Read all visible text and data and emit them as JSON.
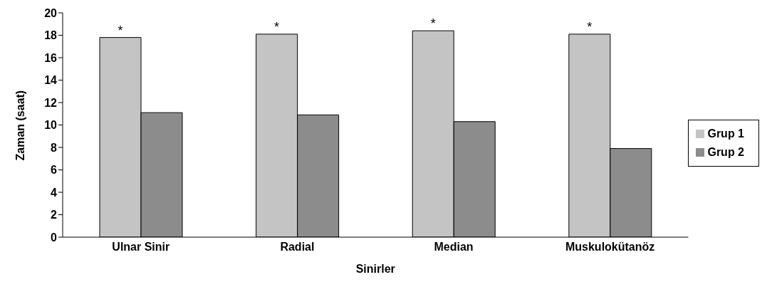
{
  "chart_data": {
    "type": "bar",
    "xlabel": "Sinirler",
    "ylabel": "Zaman (saat)",
    "categories": [
      "Ulnar Sinir",
      "Radial",
      "Median",
      "Muskulokütanöz"
    ],
    "series": [
      {
        "name": "Grup 1",
        "color": "#c4c4c4",
        "values": [
          17.8,
          18.1,
          18.4,
          18.1
        ]
      },
      {
        "name": "Grup 2",
        "color": "#8c8c8c",
        "values": [
          11.1,
          10.9,
          10.3,
          7.9
        ]
      }
    ],
    "ylim": [
      0,
      20
    ],
    "yticks": [
      0,
      2,
      4,
      6,
      8,
      10,
      12,
      14,
      16,
      18,
      20
    ],
    "grid": false,
    "legend": "right",
    "annotations": [
      "*",
      "*",
      "*",
      "*"
    ]
  }
}
